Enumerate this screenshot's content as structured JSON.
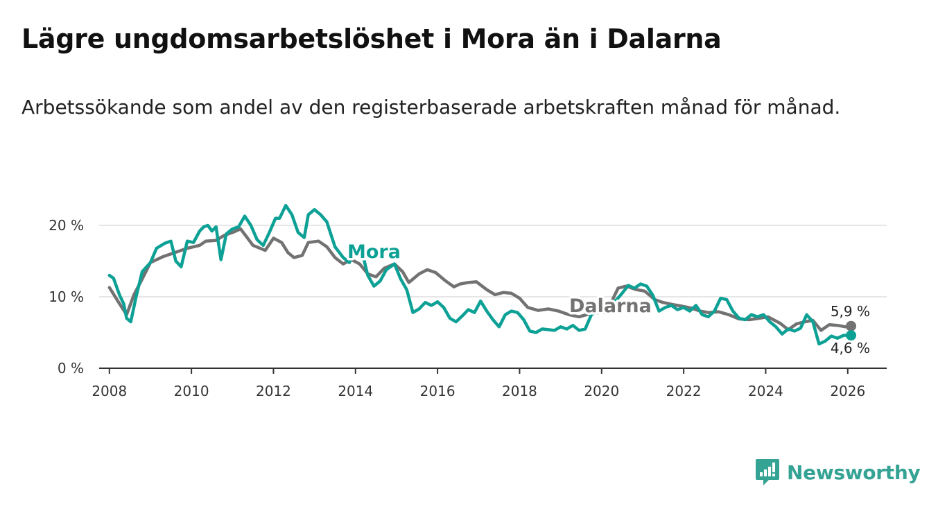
{
  "title": "Lägre ungdomsarbetslöshet i Mora än i Dalarna",
  "subtitle": "Arbetssökande som andel av den registerbaserade arbetskraften månad för månad.",
  "brand": {
    "name": "Newsworthy",
    "color": "#35a394"
  },
  "colors": {
    "mora": "#0da196",
    "dalarna": "#737272",
    "grid": "#dddddd",
    "axis": "#333333"
  },
  "chart_data": {
    "type": "line",
    "title": "Lägre ungdomsarbetslöshet i Mora än i Dalarna",
    "xlabel": "",
    "ylabel": "",
    "xlim": [
      2007.75,
      2026.95
    ],
    "ylim": [
      0,
      20
    ],
    "x_ticks": [
      2008,
      2010,
      2012,
      2014,
      2016,
      2018,
      2020,
      2022,
      2024,
      2026
    ],
    "x_tick_labels": [
      "2008",
      "2010",
      "2012",
      "2014",
      "2016",
      "2018",
      "2020",
      "2022",
      "2024",
      "2026"
    ],
    "y_ticks": [
      0,
      10,
      20
    ],
    "y_tick_labels": [
      "0 %",
      "10 %",
      "20 %"
    ],
    "grid": "horizontal",
    "series": [
      {
        "name": "Dalarna",
        "label": "Dalarna",
        "end_label": "5,9 %",
        "x": [
          2008.0,
          2008.25,
          2008.42,
          2008.6,
          2008.8,
          2009.0,
          2009.3,
          2009.6,
          2009.9,
          2010.2,
          2010.35,
          2010.6,
          2010.8,
          2011.0,
          2011.2,
          2011.5,
          2011.8,
          2012.0,
          2012.2,
          2012.35,
          2012.5,
          2012.7,
          2012.85,
          2013.1,
          2013.3,
          2013.5,
          2013.7,
          2013.9,
          2014.1,
          2014.3,
          2014.5,
          2014.7,
          2014.95,
          2015.15,
          2015.3,
          2015.55,
          2015.75,
          2015.95,
          2016.2,
          2016.4,
          2016.55,
          2016.75,
          2016.95,
          2017.2,
          2017.4,
          2017.6,
          2017.8,
          2018.0,
          2018.2,
          2018.45,
          2018.7,
          2018.95,
          2019.2,
          2019.45,
          2019.7,
          2019.95,
          2020.2,
          2020.4,
          2020.6,
          2020.85,
          2021.05,
          2021.3,
          2021.5,
          2021.75,
          2021.95,
          2022.2,
          2022.4,
          2022.6,
          2022.85,
          2023.1,
          2023.35,
          2023.6,
          2023.85,
          2024.05,
          2024.35,
          2024.55,
          2024.75,
          2024.95,
          2025.15,
          2025.35,
          2025.55,
          2025.75,
          2025.95,
          2026.08
        ],
        "values": [
          11.3,
          9.0,
          7.5,
          10.3,
          12.5,
          14.8,
          15.6,
          16.2,
          16.8,
          17.2,
          17.8,
          17.9,
          18.6,
          19.0,
          19.5,
          17.2,
          16.5,
          18.2,
          17.6,
          16.2,
          15.5,
          15.8,
          17.6,
          17.8,
          17.0,
          15.5,
          14.6,
          15.2,
          14.6,
          13.2,
          12.8,
          14.0,
          14.6,
          13.5,
          12.0,
          13.2,
          13.8,
          13.4,
          12.2,
          11.4,
          11.8,
          12.0,
          12.1,
          11.0,
          10.3,
          10.6,
          10.5,
          9.8,
          8.5,
          8.1,
          8.3,
          8.0,
          7.5,
          7.2,
          7.6,
          7.8,
          8.8,
          11.2,
          11.5,
          11.0,
          10.8,
          9.6,
          9.2,
          8.9,
          8.7,
          8.4,
          8.0,
          7.8,
          7.9,
          7.5,
          6.9,
          6.8,
          7.0,
          7.2,
          6.3,
          5.4,
          6.2,
          6.5,
          6.7,
          5.3,
          6.1,
          6.0,
          5.8,
          5.9
        ]
      },
      {
        "name": "Mora",
        "label": "Mora",
        "end_label": "4,6 %",
        "x": [
          2008.0,
          2008.1,
          2008.25,
          2008.35,
          2008.42,
          2008.52,
          2008.65,
          2008.8,
          2009.0,
          2009.15,
          2009.35,
          2009.5,
          2009.62,
          2009.75,
          2009.9,
          2010.05,
          2010.2,
          2010.3,
          2010.4,
          2010.5,
          2010.6,
          2010.72,
          2010.85,
          2011.0,
          2011.15,
          2011.3,
          2011.45,
          2011.6,
          2011.75,
          2011.9,
          2012.05,
          2012.15,
          2012.3,
          2012.45,
          2012.6,
          2012.75,
          2012.85,
          2013.0,
          2013.15,
          2013.3,
          2013.5,
          2013.7,
          2013.85,
          2014.0,
          2014.15,
          2014.3,
          2014.45,
          2014.6,
          2014.75,
          2014.95,
          2015.1,
          2015.25,
          2015.4,
          2015.55,
          2015.7,
          2015.85,
          2016.0,
          2016.15,
          2016.3,
          2016.45,
          2016.6,
          2016.75,
          2016.9,
          2017.05,
          2017.2,
          2017.35,
          2017.5,
          2017.65,
          2017.8,
          2017.95,
          2018.1,
          2018.25,
          2018.4,
          2018.55,
          2018.7,
          2018.85,
          2019.0,
          2019.15,
          2019.3,
          2019.45,
          2019.6,
          2019.75,
          2019.9,
          2020.05,
          2020.2,
          2020.35,
          2020.5,
          2020.65,
          2020.8,
          2020.95,
          2021.1,
          2021.25,
          2021.4,
          2021.55,
          2021.7,
          2021.85,
          2022.0,
          2022.15,
          2022.3,
          2022.45,
          2022.6,
          2022.75,
          2022.9,
          2023.05,
          2023.2,
          2023.35,
          2023.5,
          2023.65,
          2023.8,
          2023.95,
          2024.1,
          2024.25,
          2024.4,
          2024.55,
          2024.7,
          2024.85,
          2025.0,
          2025.15,
          2025.3,
          2025.45,
          2025.6,
          2025.75,
          2025.9,
          2026.05,
          2026.08
        ],
        "values": [
          13.0,
          12.6,
          10.2,
          9.0,
          7.0,
          6.5,
          10.0,
          13.5,
          14.8,
          16.8,
          17.5,
          17.8,
          15.0,
          14.2,
          17.8,
          17.6,
          19.2,
          19.8,
          20.0,
          19.2,
          19.8,
          15.2,
          18.8,
          19.5,
          19.8,
          21.3,
          20.0,
          18.0,
          17.2,
          19.0,
          21.0,
          21.0,
          22.8,
          21.5,
          19.0,
          18.3,
          21.5,
          22.2,
          21.5,
          20.5,
          17.0,
          15.5,
          14.8,
          16.5,
          16.5,
          13.0,
          11.5,
          12.2,
          13.8,
          14.6,
          12.5,
          11.0,
          7.8,
          8.3,
          9.2,
          8.8,
          9.3,
          8.5,
          7.0,
          6.5,
          7.3,
          8.2,
          7.8,
          9.4,
          8.0,
          6.8,
          5.8,
          7.5,
          8.0,
          7.8,
          6.8,
          5.2,
          5.0,
          5.5,
          5.4,
          5.3,
          5.8,
          5.5,
          6.0,
          5.3,
          5.5,
          7.5,
          8.0,
          7.8,
          9.0,
          9.5,
          10.5,
          11.6,
          11.2,
          11.8,
          11.5,
          10.2,
          8.0,
          8.5,
          8.8,
          8.2,
          8.5,
          8.0,
          8.8,
          7.5,
          7.2,
          8.0,
          9.8,
          9.6,
          8.0,
          7.0,
          6.8,
          7.5,
          7.2,
          7.5,
          6.5,
          5.8,
          4.8,
          5.5,
          5.2,
          5.6,
          7.5,
          6.5,
          3.4,
          3.8,
          4.5,
          4.2,
          4.6,
          4.6,
          4.6
        ]
      }
    ]
  }
}
